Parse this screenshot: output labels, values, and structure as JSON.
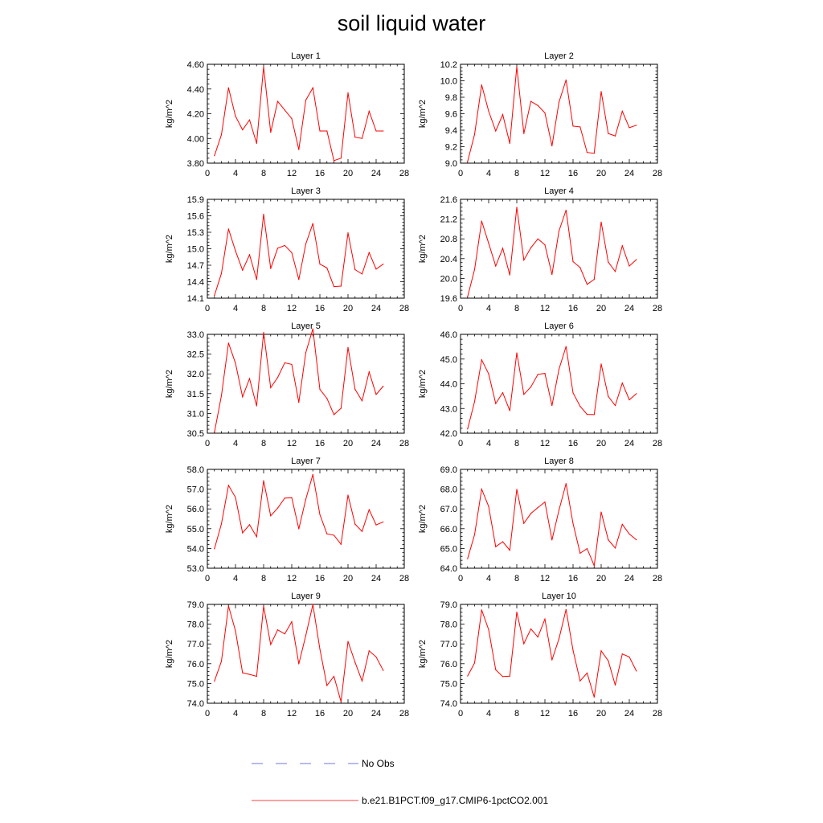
{
  "title": "soil liquid water",
  "colors": {
    "model_line": "#ff0000",
    "obs_line": "#4a4ad0",
    "axis": "#000000"
  },
  "legend": {
    "obs_label": "No Obs",
    "model_label": "b.e21.B1PCT.f09_g17.CMIP6-1pctCO2.001"
  },
  "chart_data": [
    {
      "type": "line",
      "title": "Layer 1",
      "ylabel": "kg/m^2",
      "xlim": [
        0,
        28
      ],
      "xticks": [
        0,
        4,
        8,
        12,
        16,
        20,
        24,
        28
      ],
      "ylim": [
        3.8,
        4.6
      ],
      "yticks": [
        "3.80",
        "4.00",
        "4.20",
        "4.40",
        "4.60"
      ],
      "x": [
        1,
        2,
        3,
        4,
        5,
        6,
        7,
        8,
        9,
        10,
        11,
        12,
        13,
        14,
        15,
        16,
        17,
        18,
        19,
        20,
        21,
        22,
        23,
        24,
        25
      ],
      "series": [
        {
          "values": [
            3.86,
            4.03,
            4.41,
            4.18,
            4.07,
            4.15,
            3.96,
            4.58,
            4.05,
            4.3,
            4.23,
            4.16,
            3.91,
            4.31,
            4.41,
            4.06,
            4.06,
            3.82,
            3.84,
            4.37,
            4.01,
            4.0,
            4.22,
            4.06,
            4.06
          ]
        }
      ]
    },
    {
      "type": "line",
      "title": "Layer 2",
      "ylabel": "kg/m^2",
      "xlim": [
        0,
        28
      ],
      "xticks": [
        0,
        4,
        8,
        12,
        16,
        20,
        24,
        28
      ],
      "ylim": [
        9.0,
        10.2
      ],
      "yticks": [
        "9.0",
        "9.2",
        "9.4",
        "9.6",
        "9.8",
        "10.0",
        "10.2"
      ],
      "x": [
        1,
        2,
        3,
        4,
        5,
        6,
        7,
        8,
        9,
        10,
        11,
        12,
        13,
        14,
        15,
        16,
        17,
        18,
        19,
        20,
        21,
        22,
        23,
        24,
        25
      ],
      "series": [
        {
          "values": [
            9.02,
            9.35,
            9.95,
            9.63,
            9.39,
            9.59,
            9.24,
            10.17,
            9.36,
            9.75,
            9.7,
            9.61,
            9.21,
            9.74,
            10.01,
            9.45,
            9.44,
            9.13,
            9.12,
            9.87,
            9.36,
            9.33,
            9.63,
            9.43,
            9.46
          ]
        }
      ]
    },
    {
      "type": "line",
      "title": "Layer 3",
      "ylabel": "kg/m^2",
      "xlim": [
        0,
        28
      ],
      "xticks": [
        0,
        4,
        8,
        12,
        16,
        20,
        24,
        28
      ],
      "ylim": [
        14.1,
        15.9
      ],
      "yticks": [
        "14.1",
        "14.4",
        "14.7",
        "15.0",
        "15.3",
        "15.6",
        "15.9"
      ],
      "x": [
        1,
        2,
        3,
        4,
        5,
        6,
        7,
        8,
        9,
        10,
        11,
        12,
        13,
        14,
        15,
        16,
        17,
        18,
        19,
        20,
        21,
        22,
        23,
        24,
        25
      ],
      "series": [
        {
          "values": [
            14.15,
            14.55,
            15.36,
            14.96,
            14.61,
            14.89,
            14.44,
            15.63,
            14.64,
            15.01,
            15.06,
            14.93,
            14.44,
            15.09,
            15.46,
            14.72,
            14.65,
            14.31,
            14.32,
            15.29,
            14.62,
            14.54,
            14.93,
            14.63,
            14.72
          ]
        }
      ]
    },
    {
      "type": "line",
      "title": "Layer 4",
      "ylabel": "kg/m^2",
      "xlim": [
        0,
        28
      ],
      "xticks": [
        0,
        4,
        8,
        12,
        16,
        20,
        24,
        28
      ],
      "ylim": [
        19.6,
        21.6
      ],
      "yticks": [
        "19.6",
        "20.0",
        "20.4",
        "20.8",
        "21.2",
        "21.6"
      ],
      "x": [
        1,
        2,
        3,
        4,
        5,
        6,
        7,
        8,
        9,
        10,
        11,
        12,
        13,
        14,
        15,
        16,
        17,
        18,
        19,
        20,
        21,
        22,
        23,
        24,
        25
      ],
      "series": [
        {
          "values": [
            19.63,
            20.18,
            21.16,
            20.71,
            20.25,
            20.61,
            20.07,
            21.44,
            20.37,
            20.62,
            20.8,
            20.68,
            20.08,
            20.96,
            21.38,
            20.34,
            20.22,
            19.88,
            19.98,
            21.14,
            20.33,
            20.14,
            20.66,
            20.25,
            20.38
          ]
        }
      ]
    },
    {
      "type": "line",
      "title": "Layer 5",
      "ylabel": "kg/m^2",
      "xlim": [
        0,
        28
      ],
      "xticks": [
        0,
        4,
        8,
        12,
        16,
        20,
        24,
        28
      ],
      "ylim": [
        30.5,
        33.0
      ],
      "yticks": [
        "30.5",
        "31.0",
        "31.5",
        "32.0",
        "32.5",
        "33.0"
      ],
      "x": [
        1,
        2,
        3,
        4,
        5,
        6,
        7,
        8,
        9,
        10,
        11,
        12,
        13,
        14,
        15,
        16,
        17,
        18,
        19,
        20,
        21,
        22,
        23,
        24,
        25
      ],
      "series": [
        {
          "values": [
            30.52,
            31.45,
            32.78,
            32.27,
            31.42,
            31.88,
            31.19,
            33.05,
            31.65,
            31.91,
            32.28,
            32.24,
            31.28,
            32.54,
            33.14,
            31.61,
            31.38,
            30.97,
            31.13,
            32.67,
            31.61,
            31.32,
            32.05,
            31.48,
            31.69
          ]
        }
      ]
    },
    {
      "type": "line",
      "title": "Layer 6",
      "ylabel": "kg/m^2",
      "xlim": [
        0,
        28
      ],
      "xticks": [
        0,
        4,
        8,
        12,
        16,
        20,
        24,
        28
      ],
      "ylim": [
        42.0,
        46.0
      ],
      "yticks": [
        "42.0",
        "43.0",
        "44.0",
        "45.0",
        "46.0"
      ],
      "x": [
        1,
        2,
        3,
        4,
        5,
        6,
        7,
        8,
        9,
        10,
        11,
        12,
        13,
        14,
        15,
        16,
        17,
        18,
        19,
        20,
        21,
        22,
        23,
        24,
        25
      ],
      "series": [
        {
          "values": [
            42.17,
            43.28,
            44.97,
            44.4,
            43.2,
            43.64,
            42.91,
            45.25,
            43.57,
            43.87,
            44.38,
            44.42,
            43.12,
            44.59,
            45.51,
            43.63,
            43.09,
            42.76,
            42.75,
            44.8,
            43.49,
            43.12,
            44.03,
            43.35,
            43.6
          ]
        }
      ]
    },
    {
      "type": "line",
      "title": "Layer 7",
      "ylabel": "kg/m^2",
      "xlim": [
        0,
        28
      ],
      "xticks": [
        0,
        4,
        8,
        12,
        16,
        20,
        24,
        28
      ],
      "ylim": [
        53.0,
        58.0
      ],
      "yticks": [
        "53.0",
        "54.0",
        "55.0",
        "56.0",
        "57.0",
        "58.0"
      ],
      "x": [
        1,
        2,
        3,
        4,
        5,
        6,
        7,
        8,
        9,
        10,
        11,
        12,
        13,
        14,
        15,
        16,
        17,
        18,
        19,
        20,
        21,
        22,
        23,
        24,
        25
      ],
      "series": [
        {
          "values": [
            53.98,
            55.24,
            57.19,
            56.58,
            54.79,
            55.2,
            54.59,
            57.43,
            55.65,
            56.04,
            56.55,
            56.57,
            54.99,
            56.49,
            57.74,
            55.71,
            54.74,
            54.67,
            54.21,
            56.7,
            55.23,
            54.86,
            55.96,
            55.19,
            55.34
          ]
        }
      ]
    },
    {
      "type": "line",
      "title": "Layer 8",
      "ylabel": "kg/m^2",
      "xlim": [
        0,
        28
      ],
      "xticks": [
        0,
        4,
        8,
        12,
        16,
        20,
        24,
        28
      ],
      "ylim": [
        64.0,
        69.0
      ],
      "yticks": [
        "64.0",
        "65.0",
        "66.0",
        "67.0",
        "68.0",
        "69.0"
      ],
      "x": [
        1,
        2,
        3,
        4,
        5,
        6,
        7,
        8,
        9,
        10,
        11,
        12,
        13,
        14,
        15,
        16,
        17,
        18,
        19,
        20,
        21,
        22,
        23,
        24,
        25
      ],
      "series": [
        {
          "values": [
            64.48,
            65.7,
            68.0,
            67.12,
            65.09,
            65.34,
            64.91,
            67.99,
            66.27,
            66.77,
            67.07,
            67.35,
            65.43,
            66.94,
            68.28,
            66.26,
            64.76,
            64.99,
            64.13,
            66.84,
            65.44,
            65.02,
            66.22,
            65.73,
            65.44
          ]
        }
      ]
    },
    {
      "type": "line",
      "title": "Layer 9",
      "ylabel": "kg/m^2",
      "xlim": [
        0,
        28
      ],
      "xticks": [
        0,
        4,
        8,
        12,
        16,
        20,
        24,
        28
      ],
      "ylim": [
        74.0,
        79.0
      ],
      "yticks": [
        "74.0",
        "75.0",
        "76.0",
        "77.0",
        "78.0",
        "79.0"
      ],
      "x": [
        1,
        2,
        3,
        4,
        5,
        6,
        7,
        8,
        9,
        10,
        11,
        12,
        13,
        14,
        15,
        16,
        17,
        18,
        19,
        20,
        21,
        22,
        23,
        24,
        25
      ],
      "series": [
        {
          "values": [
            75.12,
            76.12,
            78.92,
            77.66,
            75.54,
            75.46,
            75.36,
            78.91,
            76.97,
            77.71,
            77.51,
            78.12,
            75.99,
            77.43,
            78.99,
            76.74,
            74.9,
            75.36,
            74.08,
            77.13,
            76.07,
            75.12,
            76.65,
            76.34,
            75.66
          ]
        }
      ]
    },
    {
      "type": "line",
      "title": "Layer 10",
      "ylabel": "kg/m^2",
      "xlim": [
        0,
        28
      ],
      "xticks": [
        0,
        4,
        8,
        12,
        16,
        20,
        24,
        28
      ],
      "ylim": [
        74.0,
        79.0
      ],
      "yticks": [
        "74.0",
        "75.0",
        "76.0",
        "77.0",
        "78.0",
        "79.0"
      ],
      "x": [
        1,
        2,
        3,
        4,
        5,
        6,
        7,
        8,
        9,
        10,
        11,
        12,
        13,
        14,
        15,
        16,
        17,
        18,
        19,
        20,
        21,
        22,
        23,
        24,
        25
      ],
      "series": [
        {
          "values": [
            75.38,
            76.04,
            78.72,
            77.72,
            75.69,
            75.35,
            75.37,
            78.61,
            77.01,
            77.76,
            77.35,
            78.26,
            76.19,
            77.26,
            78.74,
            76.68,
            75.13,
            75.53,
            74.31,
            76.65,
            76.15,
            74.92,
            76.49,
            76.34,
            75.63
          ]
        }
      ]
    }
  ]
}
